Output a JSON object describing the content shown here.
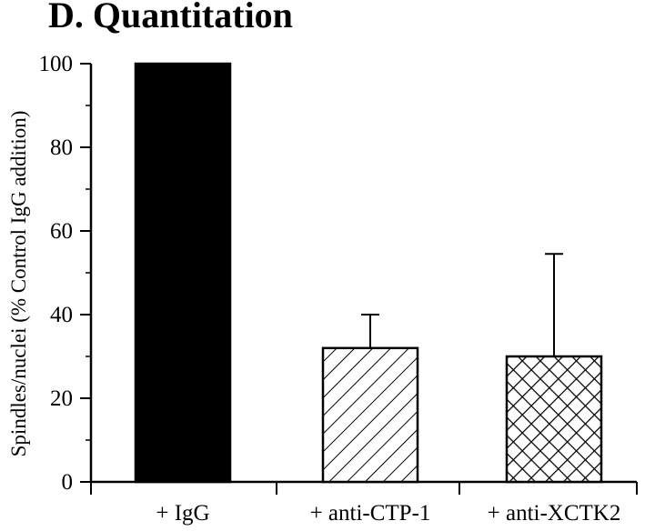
{
  "chart_data": {
    "type": "bar",
    "title": "D.  Quantitation",
    "ylabel": "Spindles/nuclei (% Control IgG addition)",
    "xlabel": "",
    "ylim": [
      0,
      100
    ],
    "yticks": [
      0,
      20,
      40,
      60,
      80,
      100
    ],
    "categories": [
      "+ IgG",
      "+ anti-CTP-1",
      "+ anti-XCTK2"
    ],
    "values": [
      100,
      32,
      30
    ],
    "errors": [
      0,
      8,
      24.5
    ],
    "fills": [
      "solid",
      "hatch-diagonal",
      "hatch-crosshatch"
    ],
    "colors": {
      "bar": "#000000",
      "background": "#ffffff"
    }
  }
}
